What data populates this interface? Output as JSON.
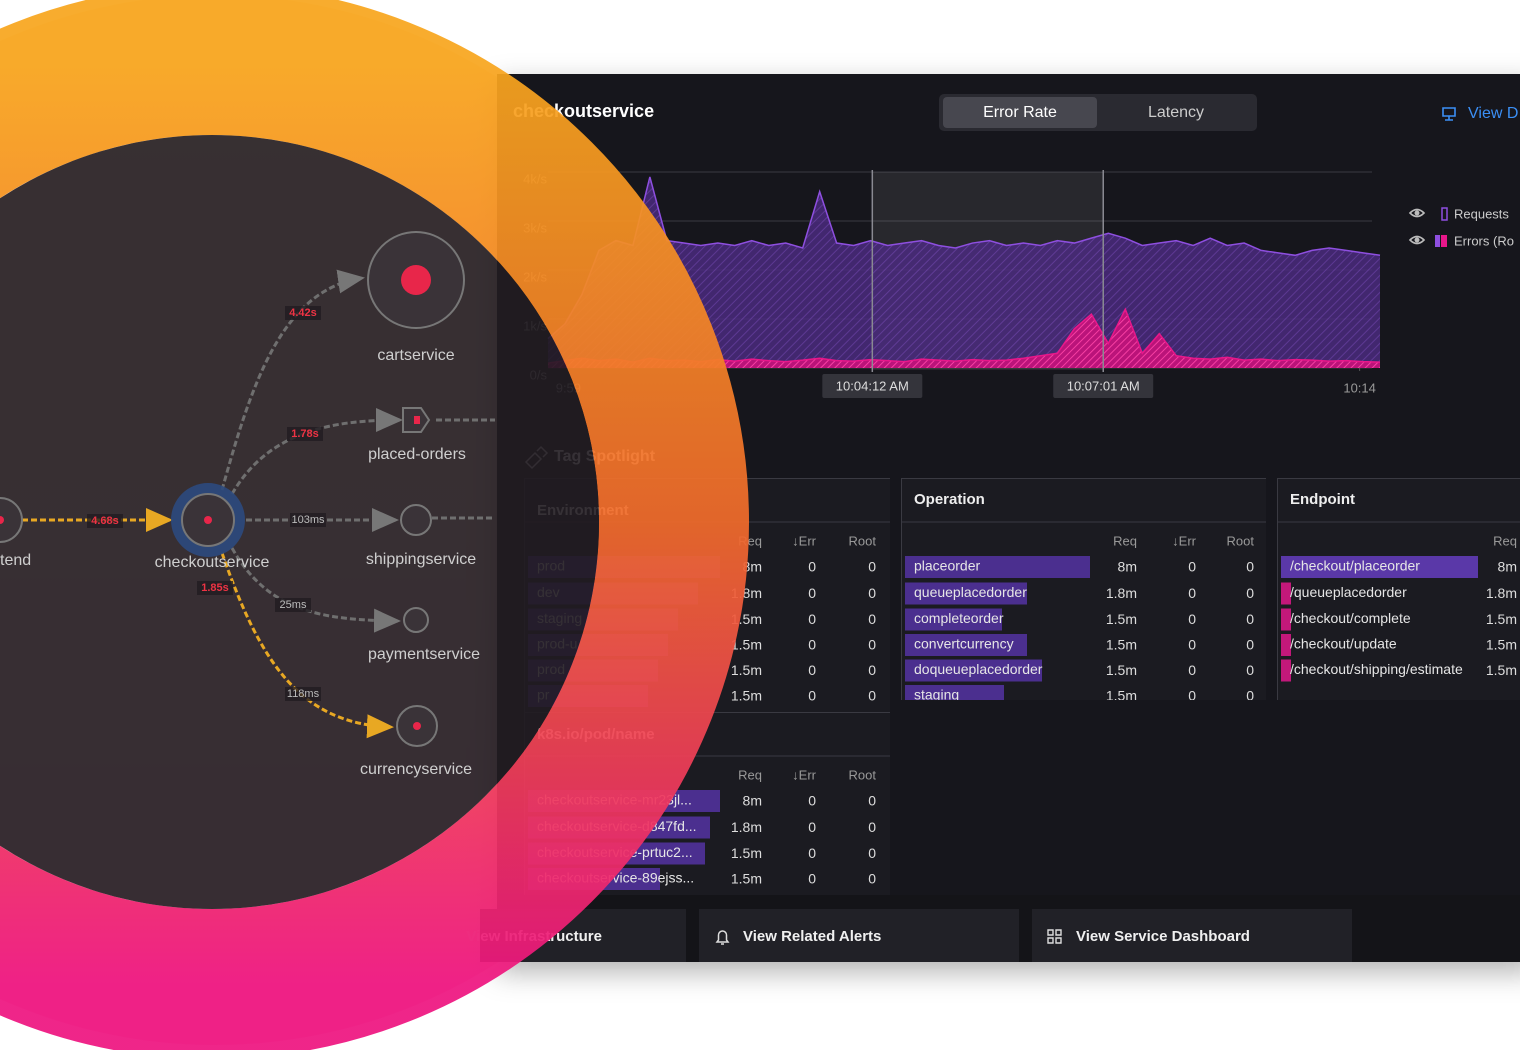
{
  "service_map": {
    "nodes": [
      {
        "label": "tend"
      },
      {
        "label": "checkoutservice"
      },
      {
        "label": "cartservice"
      },
      {
        "label": "placed-orders"
      },
      {
        "label": "shippingservice"
      },
      {
        "label": "paymentservice"
      },
      {
        "label": "currencyservice"
      }
    ],
    "edge_labels": [
      "4.68s",
      "4.42s",
      "1.78s",
      "103ms",
      "1.85s",
      "25ms",
      "118ms"
    ]
  },
  "panel": {
    "title": "checkoutservice",
    "tabs": [
      "Error Rate",
      "Latency"
    ],
    "active_tab": "Error Rate",
    "view_link": "View D"
  },
  "chart_data": {
    "type": "area",
    "series": [
      {
        "name": "Requests",
        "color": "#8e4fe0",
        "values": [
          600,
          900,
          1500,
          2400,
          2600,
          2500,
          3900,
          2600,
          2550,
          2500,
          2550,
          2500,
          2600,
          2500,
          2550,
          2450,
          3600,
          2550,
          2500,
          2600,
          2500,
          2550,
          2600,
          2500,
          2450,
          2550,
          2600,
          2500,
          2550,
          2500,
          2600,
          2550,
          2650,
          2750,
          2650,
          2500,
          2550,
          2600,
          2500,
          2650,
          2500,
          2550,
          2400,
          2350,
          2300,
          2400,
          2450,
          2400,
          2350,
          2300
        ]
      },
      {
        "name": "Errors (Ro",
        "color": "#e8178a",
        "values": [
          100,
          150,
          200,
          150,
          180,
          120,
          200,
          150,
          160,
          130,
          170,
          140,
          180,
          150,
          130,
          160,
          200,
          150,
          140,
          170,
          150,
          130,
          180,
          160,
          140,
          170,
          150,
          160,
          200,
          250,
          300,
          800,
          1100,
          500,
          1200,
          300,
          700,
          250,
          200,
          180,
          220,
          160,
          180,
          150,
          170,
          160,
          140,
          150,
          130,
          120
        ]
      }
    ],
    "xlim": [
      0,
      49
    ],
    "xticks": [
      {
        "value": 1.2,
        "label": "9:59"
      },
      {
        "value": 19.1,
        "label": "10:04:12 AM"
      },
      {
        "value": 32.7,
        "label": "10:07:01 AM"
      },
      {
        "value": 47.8,
        "label": "10:14"
      }
    ],
    "ylim": [
      0,
      4000
    ],
    "yticks": [
      {
        "value": 0,
        "label": "0/s"
      },
      {
        "value": 1000,
        "label": "1k/s"
      },
      {
        "value": 2000,
        "label": "2k/s"
      },
      {
        "value": 3000,
        "label": "3k/s"
      },
      {
        "value": 4000,
        "label": "4k/s"
      }
    ],
    "grid": true
  },
  "tag_spotlight": {
    "title": "Tag Spotlight",
    "tables": [
      {
        "title": "Environment",
        "columns": [
          "Req",
          "↓Err",
          "Root"
        ],
        "rows": [
          [
            "prod",
            "8m",
            "0",
            "0"
          ],
          [
            "dev",
            "1.8m",
            "0",
            "0"
          ],
          [
            "staging",
            "1.5m",
            "0",
            "0"
          ],
          [
            "prod-u",
            "1.5m",
            "0",
            "0"
          ],
          [
            "prod",
            "1.5m",
            "0",
            "0"
          ],
          [
            "pr",
            "1.5m",
            "0",
            "0"
          ]
        ]
      },
      {
        "title": "Operation",
        "columns": [
          "Req",
          "↓Err",
          "Root"
        ],
        "rows": [
          [
            "placeorder",
            "8m",
            "0",
            "0"
          ],
          [
            "queueplacedorder",
            "1.8m",
            "0",
            "0"
          ],
          [
            "completeorder",
            "1.5m",
            "0",
            "0"
          ],
          [
            "convertcurrency",
            "1.5m",
            "0",
            "0"
          ],
          [
            "doqueueplacedorder",
            "1.5m",
            "0",
            "0"
          ],
          [
            "staging",
            "1.5m",
            "0",
            "0"
          ]
        ]
      },
      {
        "title": "Endpoint",
        "columns": [
          "Req"
        ],
        "rows": [
          [
            "/checkout/placeorder",
            "8m"
          ],
          [
            "/queueplacedorder",
            "1.8m"
          ],
          [
            "/checkout/complete",
            "1.5m"
          ],
          [
            "/checkout/update",
            "1.5m"
          ],
          [
            "/checkout/shipping/estimate",
            "1.5m"
          ]
        ]
      },
      {
        "title": "k8s.io/pod/name",
        "columns": [
          "Req",
          "↓Err",
          "Root"
        ],
        "rows": [
          [
            "checkoutservice-mr23jl...",
            "8m",
            "0",
            "0"
          ],
          [
            "checkoutservice-d847fd...",
            "1.8m",
            "0",
            "0"
          ],
          [
            "checkoutservice-prtuc2...",
            "1.5m",
            "0",
            "0"
          ],
          [
            "checkoutservice-89ejss...",
            "1.5m",
            "0",
            "0"
          ]
        ]
      }
    ]
  },
  "footer": {
    "buttons": [
      "View Infrastructure",
      "View Related Alerts",
      "View Service Dashboard"
    ]
  }
}
